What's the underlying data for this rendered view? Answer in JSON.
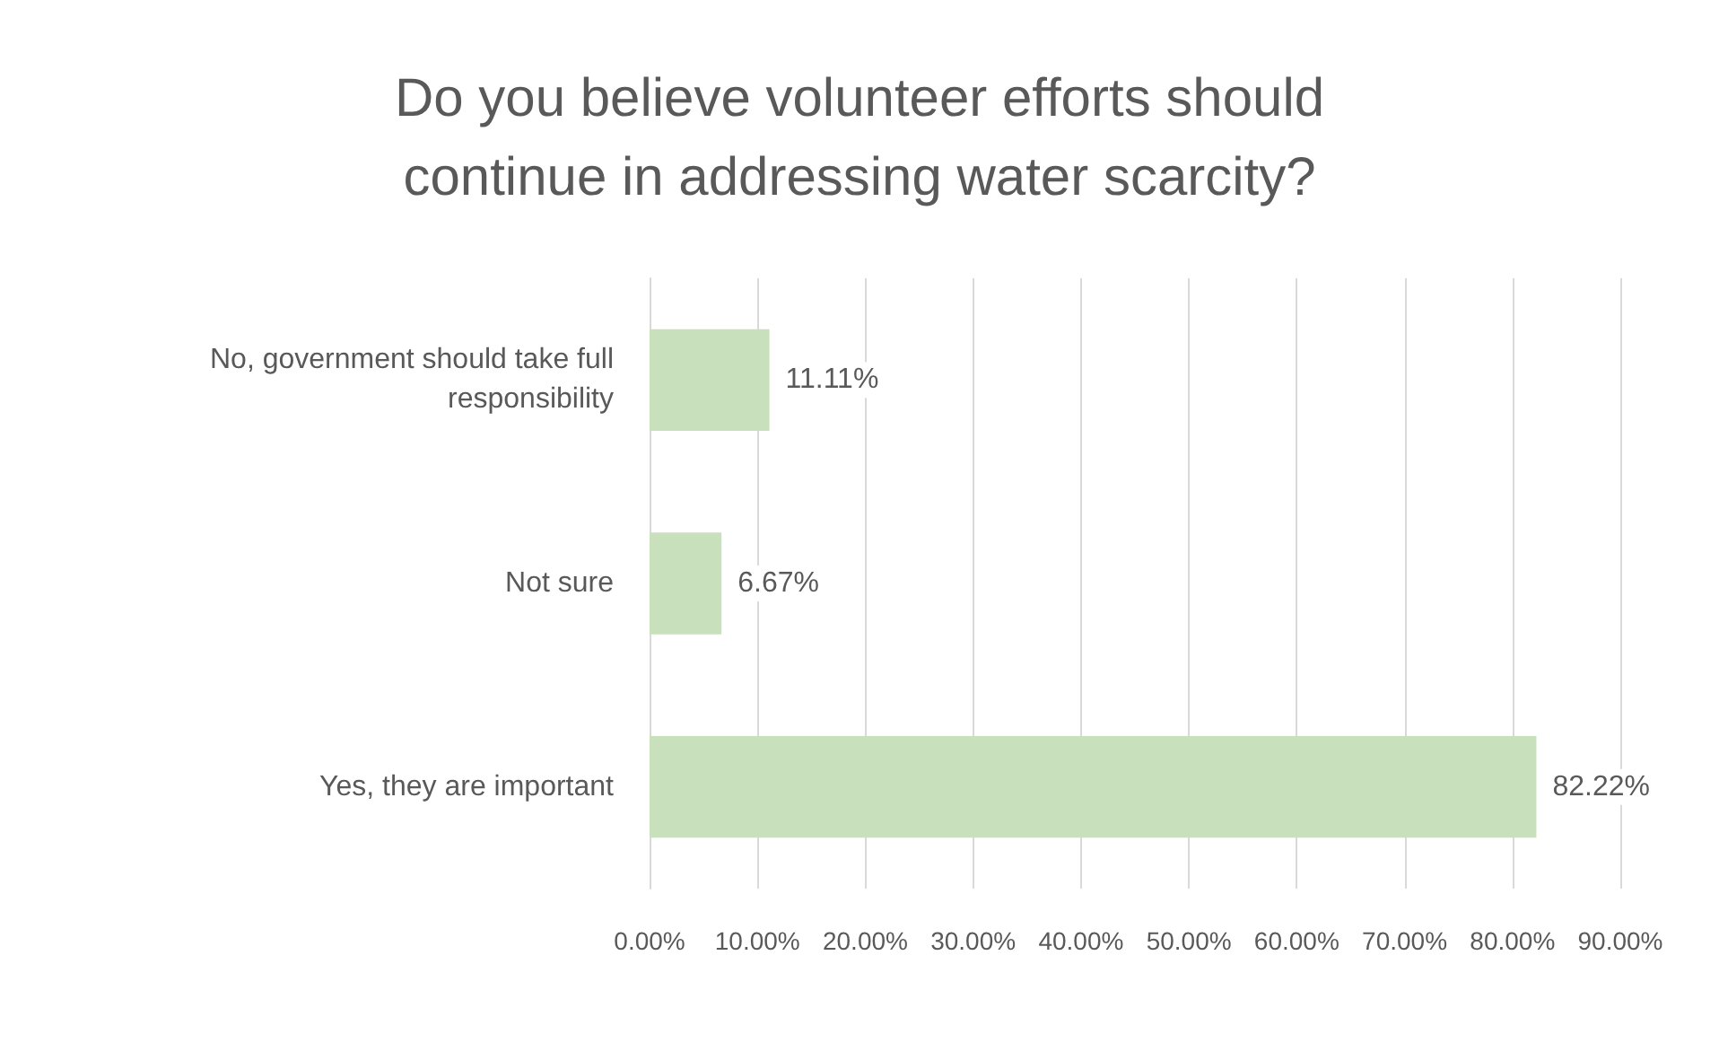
{
  "chart_data": {
    "type": "bar",
    "orientation": "horizontal",
    "title": "Do you believe volunteer efforts should\ncontinue in addressing water scarcity?",
    "categories": [
      "No, government should take full\nresponsibility",
      "Not sure",
      "Yes, they are important"
    ],
    "values": [
      11.11,
      6.67,
      82.22
    ],
    "value_labels": [
      "11.11%",
      "6.67%",
      "82.22%"
    ],
    "color": "#c9e0bd",
    "xlim": [
      0,
      90
    ],
    "xticks": [
      {
        "value": 0,
        "label": "0.00%"
      },
      {
        "value": 10,
        "label": "10.00%"
      },
      {
        "value": 20,
        "label": "20.00%"
      },
      {
        "value": 30,
        "label": "30.00%"
      },
      {
        "value": 40,
        "label": "40.00%"
      },
      {
        "value": 50,
        "label": "50.00%"
      },
      {
        "value": 60,
        "label": "60.00%"
      },
      {
        "value": 70,
        "label": "70.00%"
      },
      {
        "value": 80,
        "label": "80.00%"
      },
      {
        "value": 90,
        "label": "90.00%"
      }
    ],
    "grid": "x"
  }
}
